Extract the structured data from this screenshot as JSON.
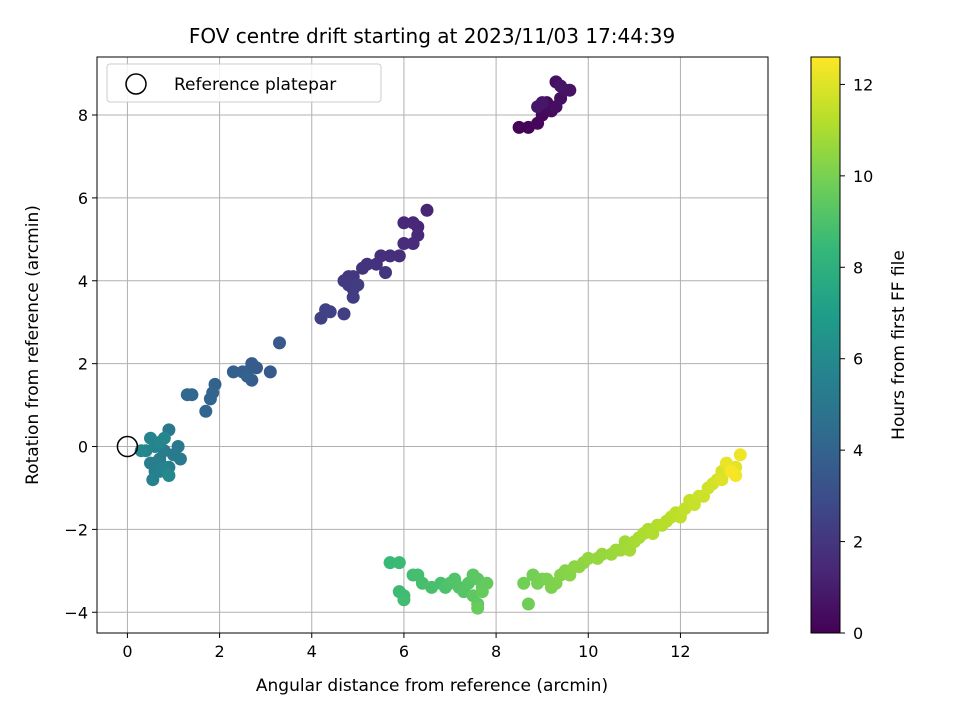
{
  "chart_data": {
    "type": "scatter",
    "title": "FOV centre drift starting at 2023/11/03 17:44:39",
    "xlabel": "Angular distance from reference (arcmin)",
    "ylabel": "Rotation from reference (arcmin)",
    "xlim": [
      -0.66,
      13.9
    ],
    "ylim": [
      -4.5,
      9.4
    ],
    "x_ticks": [
      0,
      2,
      4,
      6,
      8,
      10,
      12
    ],
    "y_ticks": [
      -4,
      -2,
      0,
      2,
      4,
      6,
      8
    ],
    "grid": true,
    "legend": {
      "placement": "top-left",
      "entries": [
        "Reference platepar"
      ]
    },
    "reference_point": {
      "x": 0,
      "y": 0,
      "label": "Reference platepar"
    },
    "colorbar": {
      "label": "Hours from first FF file",
      "range": [
        0,
        12.6
      ],
      "ticks": [
        0,
        2,
        4,
        6,
        8,
        10,
        12
      ],
      "colormap": "viridis",
      "colors": [
        "#440154",
        "#482878",
        "#3e4989",
        "#31688e",
        "#26828e",
        "#1f9e89",
        "#35b779",
        "#6ece58",
        "#b5de2b",
        "#fde725"
      ]
    },
    "series": [
      {
        "points": [
          [
            8.5,
            7.7,
            0.1
          ],
          [
            8.7,
            7.7,
            0.15
          ],
          [
            8.9,
            7.8,
            0.2
          ],
          [
            9.0,
            8.0,
            0.25
          ],
          [
            9.0,
            8.2,
            0.3
          ],
          [
            9.1,
            8.3,
            0.35
          ],
          [
            9.2,
            8.1,
            0.4
          ],
          [
            9.3,
            8.2,
            0.45
          ],
          [
            9.4,
            8.4,
            0.5
          ],
          [
            9.3,
            8.8,
            0.55
          ],
          [
            9.5,
            8.6,
            0.6
          ],
          [
            9.6,
            8.6,
            0.65
          ],
          [
            9.4,
            8.7,
            0.7
          ],
          [
            8.9,
            8.2,
            0.75
          ],
          [
            9.0,
            8.3,
            0.8
          ],
          [
            6.5,
            5.7,
            1.3
          ],
          [
            6.3,
            5.3,
            1.35
          ],
          [
            6.2,
            5.4,
            1.4
          ],
          [
            6.0,
            5.4,
            1.45
          ],
          [
            6.3,
            5.1,
            1.5
          ],
          [
            6.2,
            4.9,
            1.55
          ],
          [
            6.0,
            4.9,
            1.6
          ],
          [
            5.9,
            4.6,
            1.65
          ],
          [
            5.7,
            4.6,
            1.7
          ],
          [
            5.5,
            4.6,
            1.75
          ],
          [
            5.4,
            4.4,
            1.8
          ],
          [
            5.2,
            4.4,
            1.85
          ],
          [
            5.1,
            4.3,
            1.9
          ],
          [
            5.6,
            4.2,
            1.95
          ],
          [
            4.9,
            4.1,
            2.0
          ],
          [
            4.8,
            4.1,
            2.05
          ],
          [
            4.7,
            4.0,
            2.1
          ],
          [
            4.9,
            3.8,
            2.15
          ],
          [
            4.8,
            3.9,
            2.2
          ],
          [
            4.9,
            3.6,
            2.25
          ],
          [
            5.0,
            3.9,
            2.3
          ],
          [
            4.7,
            3.2,
            2.35
          ],
          [
            4.2,
            3.1,
            2.4
          ],
          [
            4.3,
            3.3,
            2.45
          ],
          [
            4.4,
            3.25,
            2.5
          ],
          [
            3.3,
            2.5,
            3.5
          ],
          [
            3.1,
            1.8,
            3.55
          ],
          [
            2.8,
            1.9,
            3.6
          ],
          [
            2.7,
            2.0,
            3.65
          ],
          [
            2.6,
            1.8,
            3.7
          ],
          [
            2.7,
            1.6,
            3.75
          ],
          [
            2.5,
            1.8,
            3.8
          ],
          [
            2.3,
            1.8,
            3.85
          ],
          [
            2.6,
            1.7,
            3.9
          ],
          [
            1.9,
            1.5,
            3.95
          ],
          [
            1.85,
            1.3,
            4.0
          ],
          [
            1.8,
            1.15,
            4.05
          ],
          [
            1.7,
            0.85,
            4.1
          ],
          [
            1.4,
            1.25,
            4.15
          ],
          [
            1.3,
            1.25,
            4.2
          ],
          [
            0.9,
            0.4,
            5.0
          ],
          [
            1.1,
            0.0,
            5.05
          ],
          [
            1.15,
            -0.3,
            5.1
          ],
          [
            1.0,
            -0.2,
            5.15
          ],
          [
            0.8,
            -0.1,
            5.2
          ],
          [
            0.9,
            -0.5,
            5.25
          ],
          [
            0.7,
            -0.3,
            5.3
          ],
          [
            0.6,
            -0.4,
            5.35
          ],
          [
            0.5,
            -0.4,
            5.4
          ],
          [
            0.6,
            -0.6,
            5.45
          ],
          [
            0.7,
            -0.6,
            5.5
          ],
          [
            0.55,
            -0.8,
            5.55
          ],
          [
            0.8,
            -0.5,
            5.6
          ],
          [
            0.6,
            0.0,
            5.65
          ],
          [
            0.5,
            0.2,
            5.7
          ],
          [
            0.4,
            -0.1,
            5.75
          ],
          [
            0.7,
            0.1,
            5.8
          ],
          [
            0.8,
            0.2,
            5.85
          ],
          [
            0.3,
            -0.1,
            5.9
          ],
          [
            0.9,
            -0.7,
            5.95
          ],
          [
            5.7,
            -2.8,
            8.5
          ],
          [
            5.9,
            -2.8,
            8.55
          ],
          [
            5.9,
            -3.5,
            8.6
          ],
          [
            6.0,
            -3.6,
            8.65
          ],
          [
            6.0,
            -3.7,
            8.7
          ],
          [
            6.2,
            -3.1,
            8.75
          ],
          [
            6.3,
            -3.1,
            8.8
          ],
          [
            6.4,
            -3.3,
            8.85
          ],
          [
            6.6,
            -3.4,
            8.9
          ],
          [
            6.8,
            -3.3,
            8.95
          ],
          [
            6.9,
            -3.4,
            9.0
          ],
          [
            7.0,
            -3.3,
            9.05
          ],
          [
            7.1,
            -3.2,
            9.1
          ],
          [
            7.2,
            -3.4,
            9.15
          ],
          [
            7.3,
            -3.5,
            9.2
          ],
          [
            7.4,
            -3.3,
            9.25
          ],
          [
            7.5,
            -3.1,
            9.3
          ],
          [
            7.6,
            -3.2,
            9.35
          ],
          [
            7.5,
            -3.6,
            9.4
          ],
          [
            7.6,
            -3.8,
            9.45
          ],
          [
            7.7,
            -3.4,
            9.5
          ],
          [
            7.8,
            -3.3,
            9.55
          ],
          [
            7.7,
            -3.5,
            9.6
          ],
          [
            7.6,
            -3.9,
            9.65
          ],
          [
            8.7,
            -3.8,
            9.8
          ],
          [
            8.6,
            -3.3,
            9.85
          ],
          [
            8.8,
            -3.1,
            9.9
          ],
          [
            8.9,
            -3.3,
            9.95
          ],
          [
            9.0,
            -3.2,
            10.0
          ],
          [
            9.1,
            -3.2,
            10.05
          ],
          [
            9.2,
            -3.4,
            10.1
          ],
          [
            9.3,
            -3.3,
            10.15
          ],
          [
            9.4,
            -3.1,
            10.2
          ],
          [
            9.5,
            -3.0,
            10.25
          ],
          [
            9.6,
            -3.1,
            10.3
          ],
          [
            9.7,
            -2.9,
            10.35
          ],
          [
            9.8,
            -2.9,
            10.4
          ],
          [
            9.9,
            -2.8,
            10.45
          ],
          [
            10.0,
            -2.7,
            10.5
          ],
          [
            10.2,
            -2.7,
            10.55
          ],
          [
            10.3,
            -2.6,
            10.6
          ],
          [
            10.5,
            -2.6,
            10.65
          ],
          [
            10.6,
            -2.5,
            10.7
          ],
          [
            10.7,
            -2.5,
            10.75
          ],
          [
            10.8,
            -2.3,
            10.8
          ],
          [
            10.9,
            -2.5,
            10.85
          ],
          [
            11.0,
            -2.3,
            10.9
          ],
          [
            11.1,
            -2.2,
            10.95
          ],
          [
            11.2,
            -2.1,
            11.0
          ],
          [
            11.3,
            -2.0,
            11.05
          ],
          [
            11.4,
            -2.1,
            11.1
          ],
          [
            11.5,
            -1.9,
            11.15
          ],
          [
            11.6,
            -1.9,
            11.2
          ],
          [
            11.7,
            -1.8,
            11.25
          ],
          [
            11.8,
            -1.7,
            11.3
          ],
          [
            11.9,
            -1.6,
            11.35
          ],
          [
            12.0,
            -1.7,
            11.4
          ],
          [
            12.1,
            -1.5,
            11.45
          ],
          [
            12.2,
            -1.3,
            11.5
          ],
          [
            12.3,
            -1.4,
            11.55
          ],
          [
            12.4,
            -1.2,
            11.6
          ],
          [
            12.5,
            -1.2,
            11.65
          ],
          [
            12.6,
            -1.0,
            11.7
          ],
          [
            12.7,
            -0.9,
            11.75
          ],
          [
            12.8,
            -0.8,
            11.8
          ],
          [
            12.9,
            -0.6,
            11.85
          ],
          [
            13.0,
            -0.5,
            11.9
          ],
          [
            12.9,
            -0.8,
            11.95
          ],
          [
            13.1,
            -0.6,
            12.0
          ],
          [
            13.2,
            -0.5,
            12.1
          ],
          [
            13.0,
            -0.4,
            12.2
          ],
          [
            13.3,
            -0.2,
            12.3
          ],
          [
            13.2,
            -0.7,
            12.4
          ],
          [
            13.1,
            -0.6,
            12.5
          ]
        ]
      }
    ]
  }
}
